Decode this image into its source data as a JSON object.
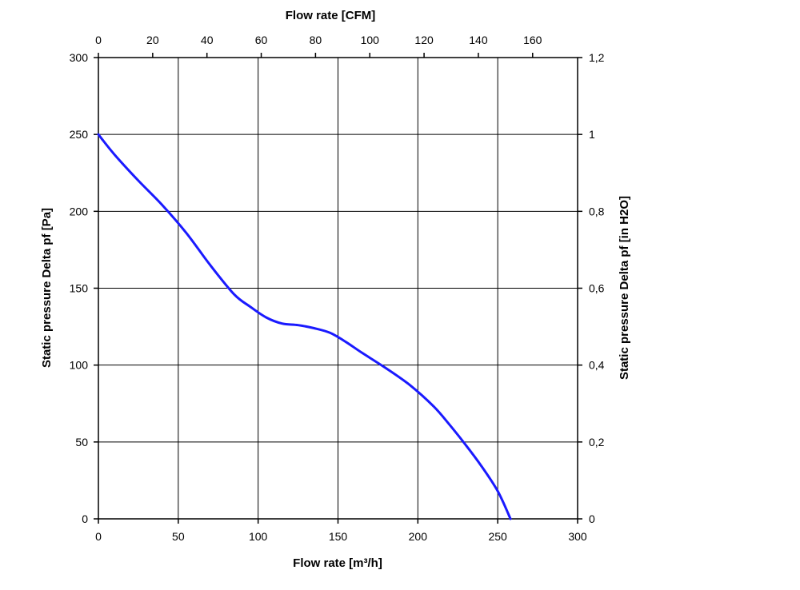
{
  "chart_data": {
    "type": "line",
    "xlabel_bottom": "Flow rate [m³/h]",
    "xlabel_top": "Flow rate [CFM]",
    "ylabel_left": "Static pressure Delta pf [Pa]",
    "ylabel_right": "Static pressure Delta pf [in H2O]",
    "xlim": [
      0,
      300
    ],
    "ylim": [
      0,
      300
    ],
    "x_top_lim": [
      0,
      176.57
    ],
    "y_right_lim": [
      0,
      1.2
    ],
    "x_ticks": [
      "0",
      "50",
      "100",
      "150",
      "200",
      "250",
      "300"
    ],
    "y_ticks": [
      "0",
      "50",
      "100",
      "150",
      "200",
      "250",
      "300"
    ],
    "x_top_ticks": [
      "0",
      "20",
      "40",
      "60",
      "80",
      "100",
      "120",
      "140",
      "160"
    ],
    "y_right_ticks": [
      "0",
      "0,2",
      "0,4",
      "0,6",
      "0,8",
      "1",
      "1,2"
    ],
    "grid": true,
    "series": [
      {
        "color": "#1a1aff",
        "x": [
          0,
          10,
          25,
          40,
          55,
          70,
          85,
          95,
          105,
          115,
          125,
          135,
          145,
          155,
          165,
          180,
          195,
          210,
          220,
          230,
          240,
          250,
          258
        ],
        "y": [
          250,
          237,
          220,
          204,
          186,
          165,
          146,
          138,
          131,
          127,
          126,
          124,
          121,
          115,
          108,
          98,
          87,
          73,
          61,
          48,
          34,
          18,
          0
        ]
      }
    ]
  }
}
